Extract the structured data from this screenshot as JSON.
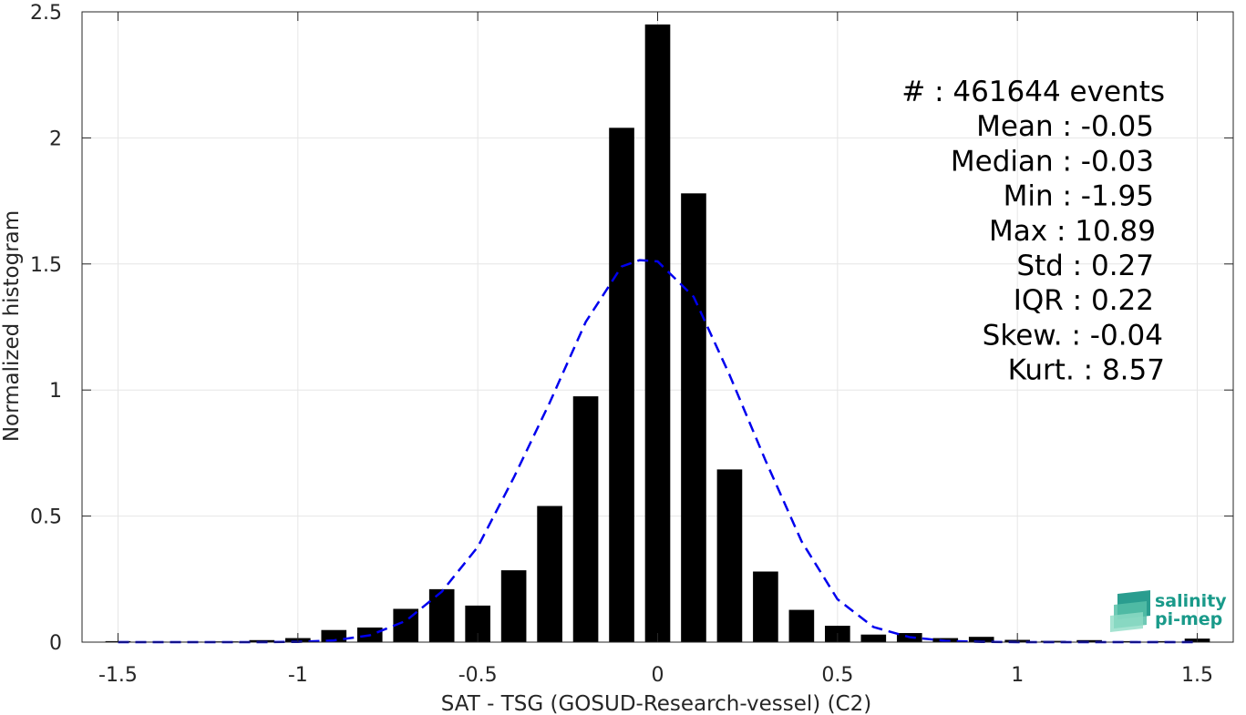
{
  "chart_data": {
    "type": "bar",
    "xlabel": "SAT - TSG (GOSUD-Research-vessel) (C2)",
    "ylabel": "Normalized histogram",
    "xlim": [
      -1.6,
      1.6
    ],
    "ylim": [
      0,
      2.5
    ],
    "xticks": [
      -1.5,
      -1,
      -0.5,
      0,
      0.5,
      1,
      1.5
    ],
    "xtick_labels": [
      "-1.5",
      "-1",
      "-0.5",
      "0",
      "0.5",
      "1",
      "1.5"
    ],
    "yticks": [
      0,
      0.5,
      1,
      1.5,
      2,
      2.5
    ],
    "ytick_labels": [
      "0",
      "0.5",
      "1",
      "1.5",
      "2",
      "2.5"
    ],
    "grid": true,
    "bar_color": "#000000",
    "bar_width": 0.07,
    "bars": {
      "x": [
        -1.5,
        -1.4,
        -1.3,
        -1.2,
        -1.1,
        -1.0,
        -0.9,
        -0.8,
        -0.7,
        -0.6,
        -0.5,
        -0.4,
        -0.3,
        -0.2,
        -0.1,
        0.0,
        0.1,
        0.2,
        0.3,
        0.4,
        0.5,
        0.6,
        0.7,
        0.8,
        0.9,
        1.0,
        1.1,
        1.2,
        1.3,
        1.4,
        1.5
      ],
      "values": [
        0.004,
        0.002,
        0.002,
        0.003,
        0.008,
        0.016,
        0.048,
        0.058,
        0.132,
        0.21,
        0.145,
        0.285,
        0.54,
        0.975,
        2.04,
        2.45,
        1.78,
        0.685,
        0.28,
        0.128,
        0.065,
        0.03,
        0.036,
        0.016,
        0.021,
        0.009,
        0.005,
        0.008,
        0.004,
        0.004,
        0.014
      ]
    },
    "gaussian_fit": {
      "style": "dashed",
      "color": "#0000ee",
      "x": [
        -1.5,
        -1.4,
        -1.3,
        -1.2,
        -1.1,
        -1.0,
        -0.9,
        -0.8,
        -0.7,
        -0.6,
        -0.5,
        -0.4,
        -0.3,
        -0.2,
        -0.1,
        -0.05,
        0.0,
        0.1,
        0.2,
        0.3,
        0.4,
        0.5,
        0.6,
        0.7,
        0.8,
        0.9,
        1.0,
        1.1,
        1.2,
        1.3,
        1.4,
        1.5
      ],
      "y": [
        0.0,
        0.0,
        0.0,
        0.0,
        0.0,
        0.001,
        0.007,
        0.027,
        0.084,
        0.2,
        0.378,
        0.652,
        0.95,
        1.27,
        1.49,
        1.515,
        1.51,
        1.37,
        1.06,
        0.72,
        0.4,
        0.17,
        0.06,
        0.02,
        0.005,
        0.001,
        0.0,
        0.0,
        0.0,
        0.0,
        0.0,
        0.0
      ]
    },
    "stats": [
      {
        "label": "#  ",
        "value": ": 461644 events"
      },
      {
        "label": "Mean",
        "value": ": -0.05"
      },
      {
        "label": "Median",
        "value": ": -0.03"
      },
      {
        "label": "Min",
        "value": ": -1.95"
      },
      {
        "label": "Max",
        "value": ": 10.89"
      },
      {
        "label": "Std",
        "value": ": 0.27"
      },
      {
        "label": "IQR",
        "value": ": 0.22"
      },
      {
        "label": "Skew.",
        "value": ": -0.04"
      },
      {
        "label": "Kurt.",
        "value": ": 8.57"
      }
    ]
  },
  "logo": {
    "line1": "salinity",
    "line2": "pi-mep",
    "color": "#1a9a8a"
  }
}
